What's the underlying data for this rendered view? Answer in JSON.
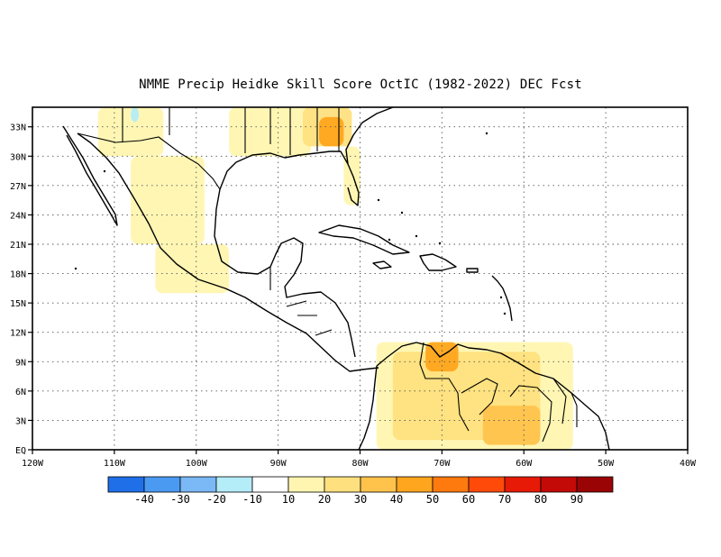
{
  "title": "NMME Precip Heidke Skill Score OctIC (1982-2022) DEC Fcst",
  "map": {
    "lon_range": [
      -120,
      -40
    ],
    "lat_range": [
      0,
      35
    ],
    "x_ticks": [
      {
        "lon": -120,
        "label": "120W"
      },
      {
        "lon": -110,
        "label": "110W"
      },
      {
        "lon": -100,
        "label": "100W"
      },
      {
        "lon": -90,
        "label": "90W"
      },
      {
        "lon": -80,
        "label": "80W"
      },
      {
        "lon": -70,
        "label": "70W"
      },
      {
        "lon": -60,
        "label": "60W"
      },
      {
        "lon": -50,
        "label": "50W"
      },
      {
        "lon": -40,
        "label": "40W"
      }
    ],
    "y_ticks": [
      {
        "lat": 0,
        "label": "EQ"
      },
      {
        "lat": 3,
        "label": "3N"
      },
      {
        "lat": 6,
        "label": "6N"
      },
      {
        "lat": 9,
        "label": "9N"
      },
      {
        "lat": 12,
        "label": "12N"
      },
      {
        "lat": 15,
        "label": "15N"
      },
      {
        "lat": 18,
        "label": "18N"
      },
      {
        "lat": 21,
        "label": "21N"
      },
      {
        "lat": 24,
        "label": "24N"
      },
      {
        "lat": 27,
        "label": "27N"
      },
      {
        "lat": 30,
        "label": "30N"
      },
      {
        "lat": 33,
        "label": "33N"
      }
    ],
    "gridlines": "dotted"
  },
  "colorbar": {
    "colors": [
      "#1f6fe8",
      "#4a9af2",
      "#7ab8f6",
      "#b4ecf8",
      "#ffffff",
      "#fff5b0",
      "#ffe07e",
      "#ffc34c",
      "#ffa51e",
      "#ff7a0e",
      "#ff4a0a",
      "#e61a06",
      "#c30a06",
      "#9a0404"
    ],
    "labels": [
      "-40",
      "-30",
      "-20",
      "-10",
      "10",
      "20",
      "30",
      "40",
      "50",
      "60",
      "70",
      "80",
      "90"
    ]
  },
  "skill_regions": [
    {
      "level": 20,
      "lon": [
        -112,
        -104
      ],
      "lat": [
        30,
        35
      ]
    },
    {
      "level": 20,
      "lon": [
        -108,
        -99
      ],
      "lat": [
        21,
        30
      ]
    },
    {
      "level": 20,
      "lon": [
        -105,
        -96
      ],
      "lat": [
        16,
        21
      ]
    },
    {
      "level": 20,
      "lon": [
        -96,
        -86
      ],
      "lat": [
        30,
        35
      ]
    },
    {
      "level": 30,
      "lon": [
        -87,
        -81
      ],
      "lat": [
        31,
        35
      ]
    },
    {
      "level": 50,
      "lon": [
        -85,
        -82
      ],
      "lat": [
        31,
        34
      ]
    },
    {
      "level": 20,
      "lon": [
        -82,
        -80
      ],
      "lat": [
        25,
        31
      ]
    },
    {
      "level": 20,
      "lon": [
        -78,
        -54
      ],
      "lat": [
        0,
        11
      ]
    },
    {
      "level": 30,
      "lon": [
        -76,
        -58
      ],
      "lat": [
        1,
        10
      ]
    },
    {
      "level": 50,
      "lon": [
        -72,
        -68
      ],
      "lat": [
        8,
        11
      ]
    },
    {
      "level": 40,
      "lon": [
        -65,
        -58
      ],
      "lat": [
        0.5,
        4.5
      ]
    },
    {
      "level": -10,
      "lon": [
        -108,
        -107
      ],
      "lat": [
        33.5,
        35
      ]
    }
  ]
}
